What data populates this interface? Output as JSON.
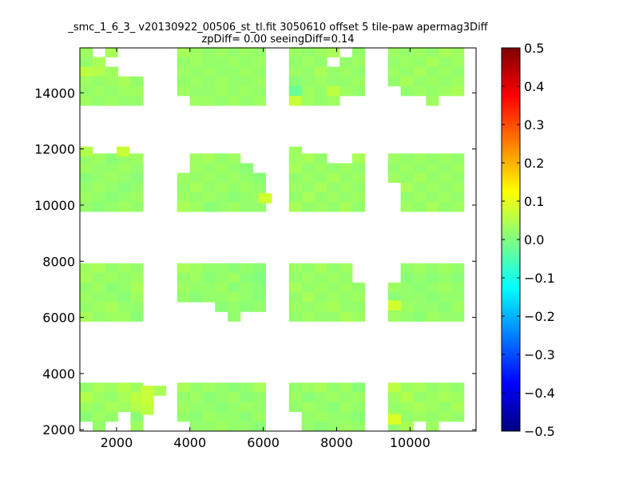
{
  "chart_data": {
    "type": "heatmap",
    "title": "_smc_1_6_3_ v20130922_00506_st_tl.fit 3050610 offset 5 tile-paw apermag3Diff",
    "subtitle": "zpDiff= 0.00 seeingDiff=0.14",
    "xlim": [
      1000,
      11800
    ],
    "ylim": [
      1950,
      15600
    ],
    "xticks": [
      2000,
      4000,
      6000,
      8000,
      10000
    ],
    "xtick_labels": [
      "2000",
      "4000",
      "6000",
      "8000",
      "10000"
    ],
    "yticks": [
      2000,
      4000,
      6000,
      8000,
      10000,
      12000,
      14000
    ],
    "ytick_labels": [
      "2000",
      "4000",
      "6000",
      "8000",
      "10000",
      "12000",
      "14000"
    ],
    "grid": false,
    "colormap": "jet",
    "colorbar": {
      "range": [
        -0.5,
        0.5
      ],
      "ticks": [
        0.5,
        0.4,
        0.3,
        0.2,
        0.1,
        0.0,
        -0.1,
        -0.2,
        -0.3,
        -0.4,
        -0.5
      ],
      "tick_labels": [
        "0.5",
        "0.4",
        "0.3",
        "0.2",
        "0.1",
        "0.0",
        "−0.1",
        "−0.2",
        "−0.3",
        "−0.4",
        "−0.5"
      ]
    },
    "cell_size": 345,
    "column_origins": [
      1000,
      3650,
      6700,
      9400
    ],
    "row_origins": [
      1950,
      5860,
      9770,
      13550
    ],
    "cells": [
      {
        "col": 0,
        "row": 0,
        "values": [
          [
            0.02,
            0.04,
            0.03,
            0.05,
            0.03
          ],
          [
            0.05,
            0.03,
            0.02,
            0.04,
            0.06
          ],
          [
            0.03,
            0.02,
            0.04,
            0.03,
            0.05
          ],
          [
            0.01,
            0.03,
            0.02,
            0.03,
            0.01
          ],
          [
            0.04,
            0.02,
            0.03,
            0.02,
            0.03
          ]
        ]
      },
      {
        "col": 1,
        "row": 0,
        "values": [
          [
            0.04,
            0.02,
            0.03,
            0.02,
            0.01,
            0.02,
            0.04
          ],
          [
            0.02,
            0.03,
            0.01,
            0.02,
            0.03,
            0.01,
            0.02
          ],
          [
            0.03,
            0.02,
            0.02,
            0.01,
            0.02,
            0.03,
            0.02
          ],
          [
            0.02,
            0.01,
            0.03,
            0.02,
            0.02,
            0.01,
            0.03
          ],
          [
            0.01,
            0.02,
            0.02,
            0.03,
            0.02,
            0.02,
            0.01
          ]
        ]
      },
      {
        "col": 2,
        "row": 0,
        "values": [
          [
            0.02,
            0.03,
            0.04,
            0.02,
            0.03,
            0.01
          ],
          [
            0.03,
            0.01,
            0.02,
            0.03,
            0.02,
            0.03
          ],
          [
            0.02,
            0.03,
            0.02,
            0.01,
            0.03,
            0.02
          ],
          [
            0.01,
            0.02,
            0.03,
            0.02,
            0.02,
            0.01
          ],
          [
            0.03,
            0.02,
            0.01,
            0.02,
            0.03,
            0.02
          ]
        ]
      },
      {
        "col": 3,
        "row": 0,
        "values": [
          [
            0.06,
            0.03,
            0.04,
            0.02,
            0.03,
            0.02
          ],
          [
            0.03,
            0.05,
            0.02,
            0.03,
            0.04,
            0.03
          ],
          [
            0.02,
            0.03,
            0.04,
            0.03,
            0.02,
            0.04
          ],
          [
            0.04,
            0.02,
            0.03,
            0.02,
            0.03,
            0.02
          ],
          [
            0.02,
            0.04,
            0.02,
            0.03,
            0.02,
            0.03
          ]
        ]
      },
      {
        "col": 0,
        "row": 1,
        "values": [
          [
            0.03,
            0.04,
            0.02,
            0.03,
            0.02
          ],
          [
            0.04,
            0.02,
            0.03,
            0.02,
            0.03
          ],
          [
            0.02,
            0.03,
            0.01,
            0.02,
            0.04
          ],
          [
            0.03,
            0.02,
            0.02,
            0.01,
            0.03
          ],
          [
            0.02,
            0.03,
            0.04,
            0.02,
            0.02
          ],
          [
            0.04,
            0.02,
            0.03,
            0.03,
            0.01
          ]
        ]
      },
      {
        "col": 1,
        "row": 1,
        "values": [
          [
            0.04,
            0.03,
            0.02,
            0.02,
            0.01,
            0.02,
            0.01
          ],
          [
            0.02,
            0.03,
            0.01,
            0.02,
            0.03,
            0.01,
            0.0
          ],
          [
            0.03,
            0.02,
            0.02,
            0.03,
            0.01,
            0.02,
            0.01
          ],
          [
            0.02,
            0.01,
            0.02,
            0.02,
            0.03,
            0.02,
            0.01
          ],
          [
            0.01,
            0.02,
            0.03,
            0.01,
            0.02,
            0.01,
            0.02
          ],
          [
            0.02,
            0.02,
            0.01,
            0.02,
            0.02,
            0.01,
            0.02
          ]
        ]
      },
      {
        "col": 2,
        "row": 1,
        "values": [
          [
            0.03,
            0.02,
            0.04,
            0.02,
            0.03,
            0.02
          ],
          [
            0.02,
            0.03,
            0.02,
            0.03,
            0.02,
            0.04
          ],
          [
            0.04,
            0.02,
            0.03,
            0.02,
            0.03,
            0.02
          ],
          [
            0.02,
            0.04,
            0.02,
            0.03,
            0.02,
            0.03
          ],
          [
            0.03,
            0.02,
            0.03,
            0.04,
            0.02,
            0.02
          ],
          [
            0.02,
            0.03,
            0.02,
            0.02,
            0.04,
            0.03
          ]
        ]
      },
      {
        "col": 3,
        "row": 1,
        "values": [
          [
            0.03,
            0.02,
            0.03,
            0.02,
            0.03,
            0.02
          ],
          [
            0.02,
            0.01,
            0.02,
            0.01,
            0.02,
            0.01
          ],
          [
            0.03,
            0.02,
            0.01,
            0.02,
            0.03,
            0.02
          ],
          [
            0.01,
            0.02,
            0.02,
            0.01,
            0.02,
            0.02
          ],
          [
            0.02,
            0.03,
            0.02,
            0.02,
            0.01,
            0.03
          ],
          [
            0.03,
            0.02,
            0.01,
            0.03,
            0.02,
            0.02
          ]
        ]
      },
      {
        "col": 0,
        "row": 2,
        "values": [
          [
            0.02,
            0.03,
            0.01,
            0.02,
            0.03
          ],
          [
            0.03,
            0.02,
            0.02,
            0.03,
            0.02
          ],
          [
            0.01,
            0.02,
            0.03,
            0.02,
            0.01
          ],
          [
            0.02,
            0.03,
            0.02,
            0.01,
            0.02
          ],
          [
            0.03,
            0.02,
            0.01,
            0.02,
            0.03
          ],
          [
            0.02,
            0.01,
            0.02,
            0.03,
            0.02
          ]
        ]
      },
      {
        "col": 1,
        "row": 2,
        "values": [
          [
            0.05,
            0.03,
            0.04,
            0.02,
            0.03,
            0.02,
            0.03
          ],
          [
            0.02,
            0.03,
            0.02,
            0.03,
            0.02,
            0.01,
            0.02
          ],
          [
            0.03,
            0.02,
            0.03,
            0.02,
            0.03,
            0.02,
            0.01
          ],
          [
            0.02,
            0.04,
            0.02,
            0.03,
            0.02,
            0.03,
            0.02
          ],
          [
            0.03,
            0.02,
            0.03,
            0.02,
            0.01,
            0.02,
            0.03
          ],
          [
            0.02,
            0.03,
            0.02,
            0.02,
            0.03,
            0.02,
            0.02
          ]
        ]
      },
      {
        "col": 2,
        "row": 2,
        "values": [
          [
            0.03,
            0.04,
            0.02,
            0.03,
            0.02,
            0.04
          ],
          [
            0.04,
            0.02,
            0.03,
            0.02,
            0.03,
            0.02
          ],
          [
            0.02,
            0.03,
            0.02,
            0.04,
            0.02,
            0.03
          ],
          [
            0.03,
            0.02,
            0.04,
            0.02,
            0.03,
            0.02
          ],
          [
            0.02,
            0.04,
            0.02,
            0.03,
            0.02,
            0.03
          ],
          [
            0.04,
            0.02,
            0.03,
            0.02,
            0.04,
            0.02
          ]
        ]
      },
      {
        "col": 3,
        "row": 2,
        "values": [
          [
            0.03,
            0.02,
            0.03,
            0.02,
            0.03,
            0.02
          ],
          [
            0.02,
            0.03,
            0.02,
            0.03,
            0.02,
            0.03
          ],
          [
            0.03,
            0.02,
            0.04,
            0.02,
            0.03,
            0.02
          ],
          [
            0.02,
            0.04,
            0.02,
            0.03,
            0.02,
            0.03
          ],
          [
            0.03,
            0.02,
            0.03,
            0.02,
            0.03,
            0.02
          ],
          [
            0.02,
            0.03,
            0.02,
            0.04,
            0.02,
            0.03
          ]
        ]
      },
      {
        "col": 0,
        "row": 3,
        "values": [
          [
            0.03,
            0.02,
            0.04,
            0.03,
            0.02
          ],
          [
            0.02,
            0.04,
            0.03,
            0.02,
            0.03
          ],
          [
            0.06,
            0.05,
            0.03,
            0.02,
            0.04
          ],
          [
            0.03,
            0.02,
            0.03,
            0.04,
            0.02
          ],
          [
            0.02,
            0.03,
            0.02,
            0.03,
            0.03
          ],
          [
            0.03,
            0.02,
            0.03,
            0.02,
            0.02
          ]
        ]
      },
      {
        "col": 1,
        "row": 3,
        "values": [
          [
            0.04,
            0.03,
            0.02,
            0.03,
            0.02,
            0.03,
            0.02
          ],
          [
            0.02,
            0.03,
            0.02,
            0.02,
            0.03,
            0.02,
            0.03
          ],
          [
            0.03,
            0.02,
            0.03,
            0.02,
            0.02,
            0.03,
            0.02
          ],
          [
            0.02,
            0.03,
            0.02,
            0.03,
            0.02,
            0.02,
            0.03
          ],
          [
            0.03,
            0.02,
            0.02,
            0.03,
            0.02,
            0.03,
            0.02
          ],
          [
            0.02,
            0.03,
            0.03,
            0.02,
            0.03,
            0.02,
            0.03
          ]
        ]
      },
      {
        "col": 2,
        "row": 3,
        "values": [
          [
            0.03,
            0.02,
            0.03,
            0.04,
            0.03,
            0.02
          ],
          [
            0.02,
            0.03,
            0.02,
            0.03,
            0.02,
            0.03
          ],
          [
            0.03,
            0.02,
            0.04,
            0.02,
            0.03,
            0.02
          ],
          [
            0.01,
            0.02,
            0.03,
            0.02,
            0.02,
            0.03
          ],
          [
            0.02,
            0.03,
            0.02,
            0.06,
            0.03,
            0.02
          ],
          [
            0.07,
            0.03,
            0.02,
            0.03,
            0.02,
            0.03
          ]
        ]
      },
      {
        "col": 3,
        "row": 3,
        "values": [
          [
            0.03,
            0.02,
            0.03,
            0.02,
            0.04,
            0.03
          ],
          [
            0.02,
            0.03,
            0.02,
            0.04,
            0.02,
            0.03
          ],
          [
            0.03,
            0.02,
            0.04,
            0.02,
            0.03,
            0.02
          ],
          [
            0.02,
            0.04,
            0.02,
            0.03,
            0.02,
            0.03
          ],
          [
            0.04,
            0.02,
            0.03,
            0.02,
            0.03,
            0.04
          ],
          [
            0.02,
            0.03,
            0.02,
            0.03,
            0.02,
            0.03
          ]
        ]
      }
    ],
    "masked": [
      {
        "col": 0,
        "row": 0,
        "cells": [
          [
            4,
            0
          ],
          [
            4,
            2
          ],
          [
            4,
            3
          ],
          [
            3,
            3
          ]
        ]
      },
      {
        "col": 1,
        "row": 0,
        "cells": [
          [
            4,
            0
          ]
        ]
      },
      {
        "col": 2,
        "row": 0,
        "cells": [
          [
            3,
            0
          ],
          [
            4,
            0
          ]
        ]
      },
      {
        "col": 3,
        "row": 0,
        "cells": [
          [
            4,
            2
          ],
          [
            4,
            4
          ],
          [
            4,
            5
          ]
        ]
      },
      {
        "col": 0,
        "row": 1,
        "cells": []
      },
      {
        "col": 1,
        "row": 1,
        "cells": [
          [
            4,
            0
          ],
          [
            5,
            0
          ],
          [
            5,
            1
          ],
          [
            5,
            2
          ],
          [
            5,
            3
          ],
          [
            5,
            5
          ],
          [
            5,
            6
          ],
          [
            4,
            1
          ],
          [
            4,
            2
          ]
        ]
      },
      {
        "col": 2,
        "row": 1,
        "cells": [
          [
            1,
            5
          ],
          [
            0,
            5
          ]
        ]
      },
      {
        "col": 3,
        "row": 1,
        "cells": [
          [
            0,
            0
          ],
          [
            1,
            0
          ]
        ]
      },
      {
        "col": 0,
        "row": 2,
        "cells": []
      },
      {
        "col": 1,
        "row": 2,
        "cells": [
          [
            0,
            0
          ],
          [
            1,
            0
          ],
          [
            0,
            6
          ],
          [
            1,
            6
          ],
          [
            0,
            5
          ]
        ]
      },
      {
        "col": 2,
        "row": 2,
        "cells": [
          [
            0,
            3
          ],
          [
            0,
            4
          ]
        ]
      },
      {
        "col": 3,
        "row": 2,
        "cells": [
          [
            5,
            0
          ],
          [
            4,
            0
          ],
          [
            3,
            0
          ]
        ]
      },
      {
        "col": 0,
        "row": 3,
        "cells": [
          [
            0,
            1
          ],
          [
            0,
            3
          ],
          [
            0,
            4
          ],
          [
            1,
            4
          ],
          [
            1,
            3
          ],
          [
            2,
            3
          ],
          [
            2,
            4
          ],
          [
            1,
            2
          ]
        ]
      },
      {
        "col": 1,
        "row": 3,
        "cells": [
          [
            5,
            0
          ]
        ]
      },
      {
        "col": 2,
        "row": 3,
        "cells": [
          [
            5,
            5
          ],
          [
            5,
            4
          ],
          [
            0,
            4
          ],
          [
            1,
            3
          ]
        ]
      },
      {
        "col": 3,
        "row": 3,
        "cells": [
          [
            5,
            1
          ],
          [
            5,
            2
          ],
          [
            5,
            4
          ],
          [
            5,
            5
          ],
          [
            5,
            0
          ],
          [
            4,
            0
          ]
        ]
      }
    ],
    "extra_cells": [
      {
        "x": 9400,
        "y": 6260,
        "value": 0.08
      },
      {
        "x": 9400,
        "y": 2195,
        "value": 0.09
      },
      {
        "x": 3000,
        "y": 3220,
        "value": 0.04
      },
      {
        "x": 2660,
        "y": 3220,
        "value": 0.07
      },
      {
        "x": 2660,
        "y": 2880,
        "value": 0.07
      },
      {
        "x": 2660,
        "y": 2540,
        "value": 0.06
      },
      {
        "x": 1000,
        "y": 11740,
        "value": 0.05
      },
      {
        "x": 2000,
        "y": 11740,
        "value": 0.07
      },
      {
        "x": 5880,
        "y": 10075,
        "value": 0.08
      },
      {
        "x": 3650,
        "y": 9770,
        "value": 0.04
      },
      {
        "x": 4410,
        "y": 9770,
        "value": 0.01
      },
      {
        "x": 6700,
        "y": 11740,
        "value": 0.03
      },
      {
        "x": 6700,
        "y": 13900,
        "value": -0.02
      }
    ]
  }
}
